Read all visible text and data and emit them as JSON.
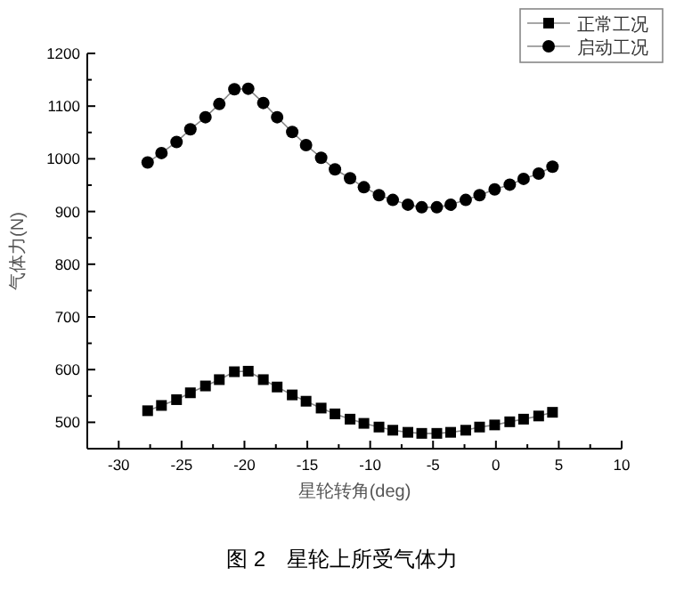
{
  "chart_data": {
    "type": "line",
    "xlabel": "星轮转角(deg)",
    "ylabel": "气体力(N)",
    "x": [
      -27.7,
      -26.6,
      -25.4,
      -24.3,
      -23.1,
      -22.0,
      -20.8,
      -19.7,
      -18.5,
      -17.4,
      -16.2,
      -15.1,
      -13.9,
      -12.8,
      -11.6,
      -10.5,
      -9.3,
      -8.2,
      -7.0,
      -5.9,
      -4.7,
      -3.6,
      -2.4,
      -1.3,
      -0.1,
      1.1,
      2.2,
      3.4,
      4.5
    ],
    "series": [
      {
        "name": "正常工况",
        "color": "#000000",
        "marker": "square",
        "values": [
          522,
          532,
          543,
          556,
          569,
          581,
          596,
          597,
          581,
          567,
          552,
          540,
          527,
          516,
          506,
          498,
          491,
          485,
          481,
          479,
          479,
          481,
          485,
          491,
          495,
          501,
          506,
          512,
          519
        ]
      },
      {
        "name": "启动工况",
        "color": "#000000",
        "marker": "circle",
        "values": [
          993,
          1011,
          1032,
          1056,
          1079,
          1104,
          1132,
          1133,
          1106,
          1079,
          1051,
          1026,
          1002,
          980,
          963,
          946,
          931,
          922,
          913,
          908,
          908,
          913,
          922,
          931,
          942,
          951,
          962,
          972,
          985
        ]
      }
    ],
    "xlim": [
      -32.5,
      10
    ],
    "ylim": [
      450,
      1200
    ],
    "xticks": [
      -30,
      {
        "value": -27.5,
        "label": null
      },
      -25,
      {
        "value": -22.5,
        "label": null
      },
      -20,
      {
        "value": -17.5,
        "label": null
      },
      -15,
      {
        "value": -12.5,
        "label": null
      },
      -10,
      {
        "value": -7.5,
        "label": null
      },
      -5,
      {
        "value": -2.5,
        "label": null
      },
      0,
      {
        "value": 2.5,
        "label": null
      },
      5,
      {
        "value": 7.5,
        "label": null
      },
      10
    ],
    "yticks": [
      {
        "value": 450,
        "label": null
      },
      500,
      {
        "value": 550,
        "label": null
      },
      600,
      {
        "value": 650,
        "label": null
      },
      700,
      {
        "value": 750,
        "label": null
      },
      800,
      {
        "value": 850,
        "label": null
      },
      900,
      {
        "value": 950,
        "label": null
      },
      1000,
      {
        "value": 1050,
        "label": null
      },
      1100,
      {
        "value": 1150,
        "label": null
      },
      1200
    ],
    "grid": false,
    "legend": "top right",
    "annotations": [
      "图 2　星轮上所受气体力"
    ]
  }
}
